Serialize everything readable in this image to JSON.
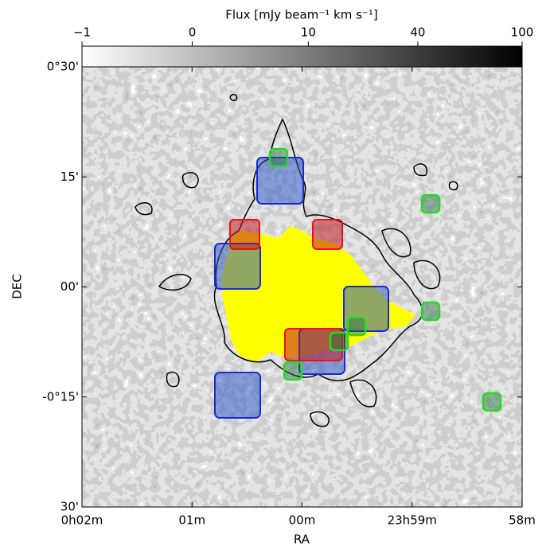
{
  "chart_data": {
    "type": "image",
    "colorbar": {
      "label": "Flux [mJy beam⁻¹ km s⁻¹]",
      "lim": [
        -1,
        100
      ],
      "stretch": "power",
      "ticks": [
        {
          "value": -1,
          "label": "−1"
        },
        0,
        10,
        40,
        100
      ]
    },
    "xlabel": "RA",
    "ylabel": "DEC",
    "xlim": [
      2,
      -2
    ],
    "xticks": [
      {
        "value": 2,
        "label": "0h02m"
      },
      {
        "value": 1,
        "label": "01m"
      },
      {
        "value": 0,
        "label": "00m"
      },
      {
        "value": -1,
        "label": "23h59m"
      },
      {
        "value": -2,
        "label": "58m"
      }
    ],
    "ylim": [
      -30,
      30
    ],
    "yticks": [
      {
        "value": 30,
        "label": "0°30'"
      },
      {
        "value": 15,
        "label": "15'"
      },
      {
        "value": 0,
        "label": "00'"
      },
      {
        "value": -15,
        "label": "-0°15'"
      },
      {
        "value": -30,
        "label": "30'"
      }
    ]
  }
}
